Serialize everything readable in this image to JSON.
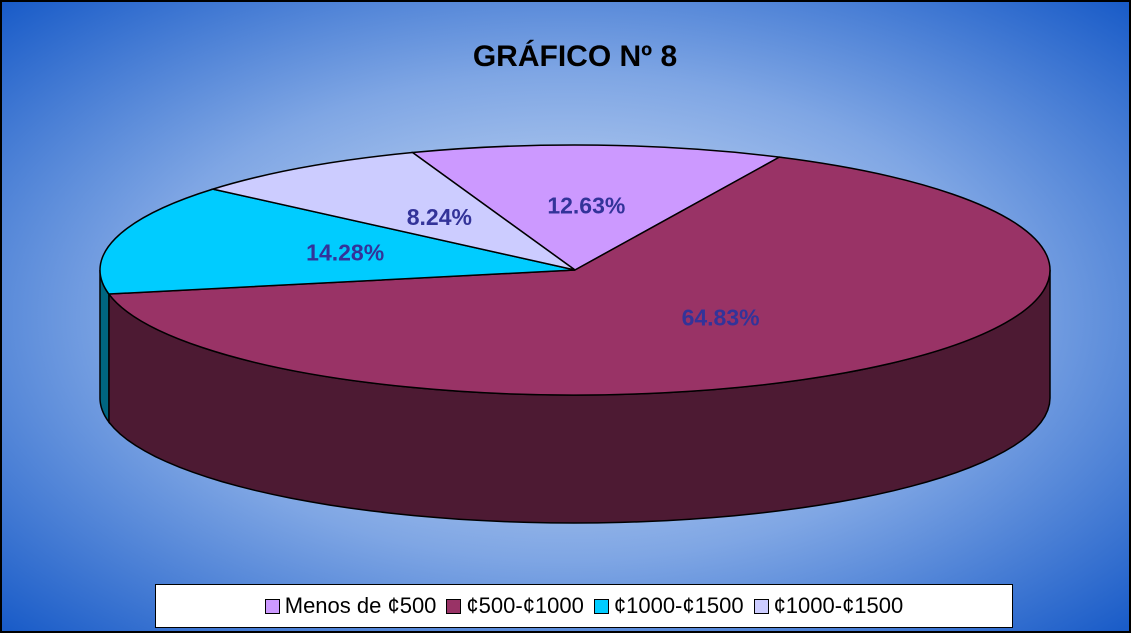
{
  "chart_data": {
    "type": "pie",
    "title": "GRÁFICO Nº 8",
    "categories": [
      "Menos de ¢500",
      "¢500-¢1000",
      "¢1000-¢1500",
      "¢1000-¢1500"
    ],
    "values": [
      12.63,
      64.83,
      14.28,
      8.24
    ],
    "value_labels": [
      "12.63%",
      "64.83%",
      "14.28%",
      "8.24%"
    ],
    "colors": [
      "#cc99ff",
      "#993366",
      "#00ccff",
      "#ccccff"
    ],
    "legend": "bottom"
  }
}
